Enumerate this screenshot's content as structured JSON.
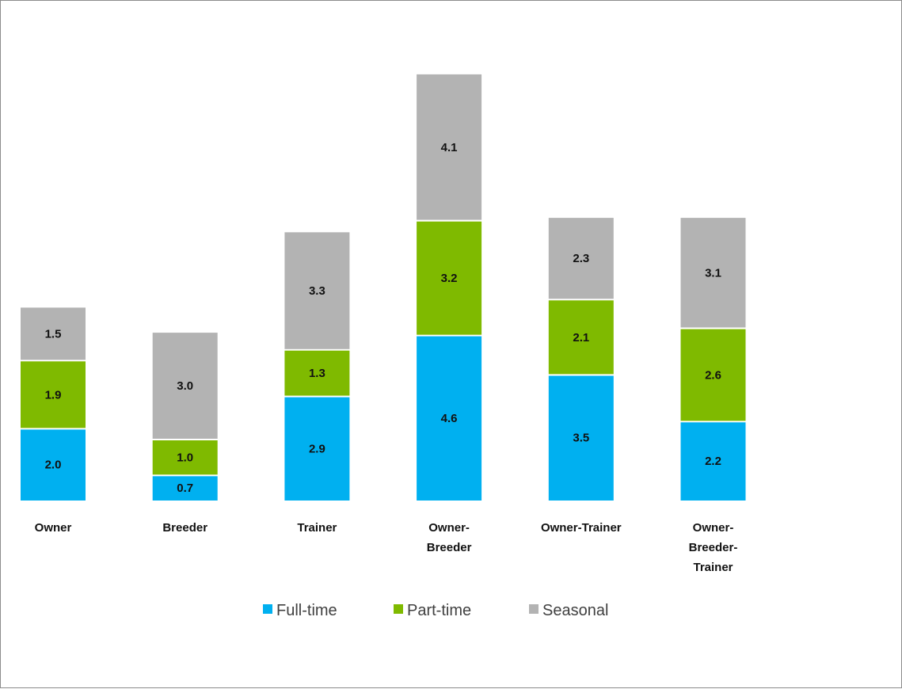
{
  "chart_data": {
    "type": "bar",
    "stacked": true,
    "title": "",
    "xlabel": "",
    "ylabel": "",
    "categories": [
      [
        "Owner"
      ],
      [
        "Breeder"
      ],
      [
        "Trainer"
      ],
      [
        "Owner-",
        "Breeder"
      ],
      [
        "Owner-Trainer"
      ],
      [
        "Owner-",
        "Breeder-",
        "Trainer"
      ]
    ],
    "series": [
      {
        "name": "Full-time",
        "color": "#00b0f0",
        "values": [
          2.0,
          0.7,
          2.9,
          4.6,
          3.5,
          2.2
        ]
      },
      {
        "name": "Part-time",
        "color": "#7fba00",
        "values": [
          1.9,
          1.0,
          1.3,
          3.2,
          2.1,
          2.6
        ]
      },
      {
        "name": "Seasonal",
        "color": "#b3b3b3",
        "values": [
          1.5,
          3.0,
          3.3,
          4.1,
          2.3,
          3.1
        ]
      }
    ],
    "data_labels": true,
    "gridlines": false,
    "y_axis_visible": false,
    "legend": "bottom"
  }
}
